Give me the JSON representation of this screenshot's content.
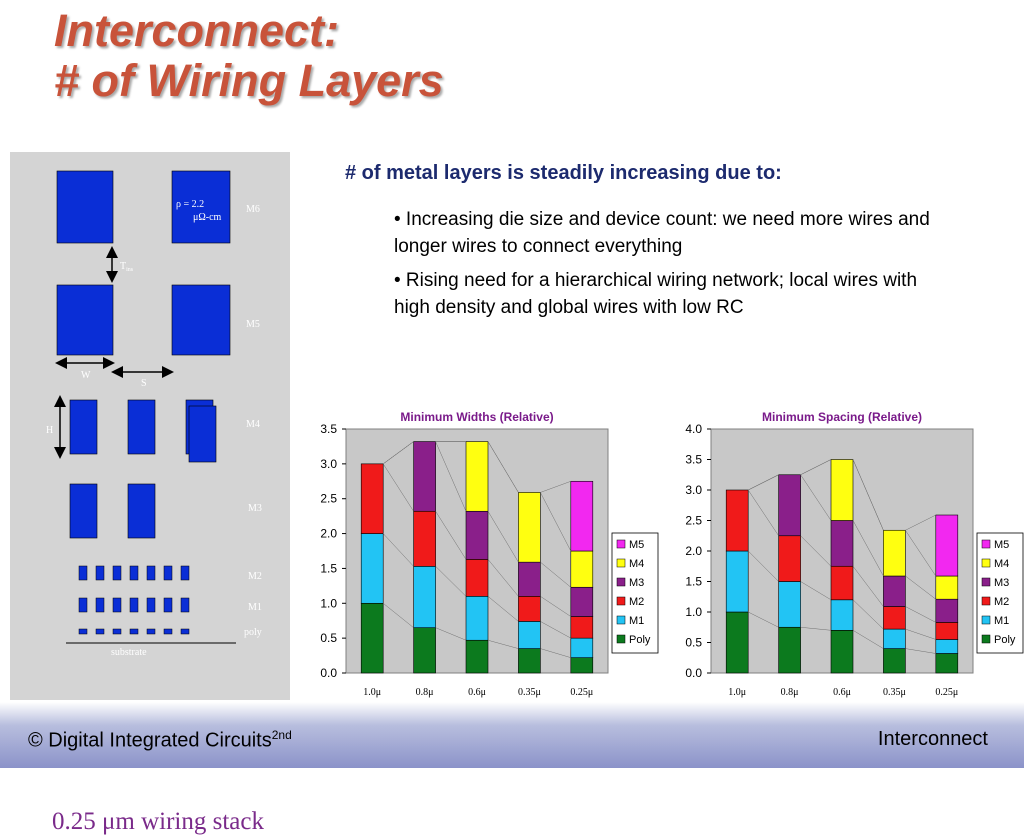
{
  "slide": {
    "title_line1": "Interconnect:",
    "title_line2": "# of Wiring Layers",
    "intro": "# of metal layers is steadily increasing due to:",
    "bullets": [
      "• Increasing die size and device count: we need more wires and longer wires to connect everything",
      "• Rising need for a hierarchical wiring network; local wires with high density and global wires with low RC"
    ]
  },
  "stack_diagram": {
    "caption": "0.25 μm wiring stack",
    "rho_label": "ρ = 2.2",
    "rho_unit": "μΩ-cm",
    "tins_label": "T",
    "tins_sub": "ins",
    "w_label": "W",
    "s_label": "S",
    "h_label": "H",
    "layers": [
      "M6",
      "M5",
      "M4",
      "M3",
      "M2",
      "M1",
      "poly"
    ],
    "substrate_label": "substrate",
    "colors": {
      "panel": "#d4d4d4",
      "metal": "#0a2ed6",
      "label": "#ffffff"
    }
  },
  "chart_data": [
    {
      "type": "bar",
      "stacked": true,
      "title": "Minimum Widths (Relative)",
      "categories": [
        "1.0μ",
        "0.8μ",
        "0.6μ",
        "0.35μ",
        "0.25μ"
      ],
      "ylim": [
        0,
        3.5
      ],
      "yticks": [
        "0.0",
        "0.5",
        "1.0",
        "1.5",
        "2.0",
        "2.5",
        "3.0",
        "3.5"
      ],
      "legend_position": "right",
      "series": [
        {
          "name": "Poly",
          "color": "#0c7a1e",
          "values": [
            1.0,
            0.65,
            0.47,
            0.35,
            0.22
          ]
        },
        {
          "name": "M1",
          "color": "#22c4f4",
          "values": [
            1.0,
            0.88,
            0.63,
            0.39,
            0.28
          ]
        },
        {
          "name": "M2",
          "color": "#f01a1a",
          "values": [
            1.0,
            0.79,
            0.53,
            0.36,
            0.31
          ]
        },
        {
          "name": "M3",
          "color": "#8a1f8a",
          "values": [
            0,
            1.0,
            0.69,
            0.49,
            0.42
          ]
        },
        {
          "name": "M4",
          "color": "#ffff10",
          "values": [
            0,
            0,
            1.0,
            1.0,
            0.52
          ]
        },
        {
          "name": "M5",
          "color": "#f228f0",
          "values": [
            0,
            0,
            0,
            0,
            1.0
          ]
        }
      ]
    },
    {
      "type": "bar",
      "stacked": true,
      "title": "Minimum Spacing (Relative)",
      "categories": [
        "1.0μ",
        "0.8μ",
        "0.6μ",
        "0.35μ",
        "0.25μ"
      ],
      "ylim": [
        0,
        4.0
      ],
      "yticks": [
        "0.0",
        "0.5",
        "1.0",
        "1.5",
        "2.0",
        "2.5",
        "3.0",
        "3.5",
        "4.0"
      ],
      "legend_position": "right",
      "series": [
        {
          "name": "Poly",
          "color": "#0c7a1e",
          "values": [
            1.0,
            0.75,
            0.7,
            0.4,
            0.32
          ]
        },
        {
          "name": "M1",
          "color": "#22c4f4",
          "values": [
            1.0,
            0.75,
            0.5,
            0.32,
            0.23
          ]
        },
        {
          "name": "M2",
          "color": "#f01a1a",
          "values": [
            1.0,
            0.75,
            0.55,
            0.37,
            0.28
          ]
        },
        {
          "name": "M3",
          "color": "#8a1f8a",
          "values": [
            0,
            1.0,
            0.75,
            0.5,
            0.38
          ]
        },
        {
          "name": "M4",
          "color": "#ffff10",
          "values": [
            0,
            0,
            1.0,
            0.75,
            0.38
          ]
        },
        {
          "name": "M5",
          "color": "#f228f0",
          "values": [
            0,
            0,
            0,
            0,
            1.0
          ]
        }
      ]
    }
  ],
  "footer": {
    "left": "© Digital Integrated Circuits",
    "left_sup": "2nd",
    "right": "Interconnect"
  }
}
